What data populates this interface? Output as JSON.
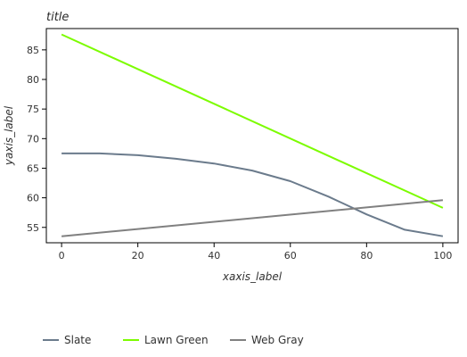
{
  "chart_data": {
    "type": "line",
    "title": "title",
    "xlabel": "xaxis_label",
    "ylabel": "yaxis_label",
    "xlim": [
      -4,
      104
    ],
    "ylim": [
      52.4,
      88.6
    ],
    "x_ticks": [
      0,
      20,
      40,
      60,
      80,
      100
    ],
    "y_ticks": [
      55,
      60,
      65,
      70,
      75,
      80,
      85
    ],
    "grid": false,
    "legend_position": "bottom",
    "series": [
      {
        "name": "Slate",
        "color": "#6b7b8c",
        "x": [
          0,
          10,
          20,
          30,
          40,
          50,
          60,
          70,
          80,
          90,
          100
        ],
        "y": [
          67.5,
          67.5,
          67.2,
          66.6,
          65.8,
          64.6,
          62.8,
          60.2,
          57.2,
          54.6,
          53.5
        ]
      },
      {
        "name": "Lawn Green",
        "color": "#7cfc00",
        "x": [
          0,
          100
        ],
        "y": [
          87.6,
          58.3
        ]
      },
      {
        "name": "Web Gray",
        "color": "#808080",
        "x": [
          0,
          100
        ],
        "y": [
          53.5,
          59.6
        ]
      }
    ]
  }
}
